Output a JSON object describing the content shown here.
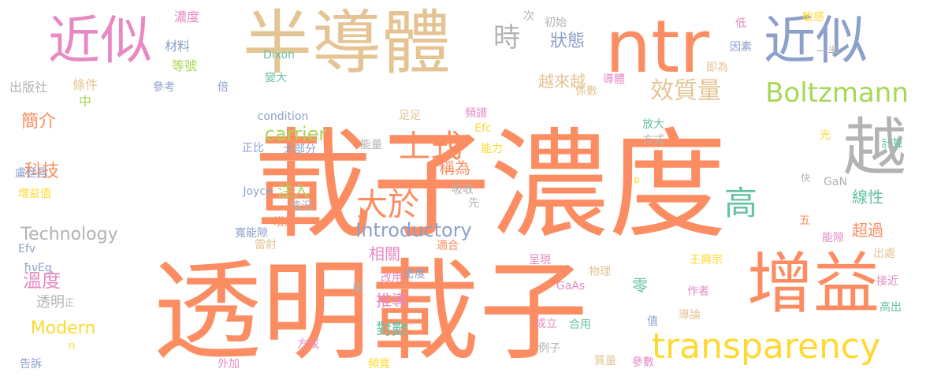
{
  "palette": {
    "orange": "#fc8d62",
    "tan": "#e5c494",
    "blue": "#8da0cb",
    "pink": "#e78ac3",
    "green": "#a6d854",
    "yellow": "#ffd92f",
    "teal": "#66c2a5",
    "gray": "#b3b3b3"
  },
  "words": [
    {
      "text": "載子濃度",
      "color": "orange",
      "v": false
    },
    {
      "text": "透明載子",
      "color": "orange",
      "v": false
    },
    {
      "text": "半導體",
      "color": "tan",
      "v": false
    },
    {
      "text": "ntr",
      "color": "orange",
      "v": false
    },
    {
      "text": "近似",
      "color": "pink",
      "v": false
    },
    {
      "text": "近似",
      "color": "blue",
      "v": false
    },
    {
      "text": "增益",
      "color": "orange",
      "v": false
    },
    {
      "text": "越",
      "color": "gray",
      "v": false
    },
    {
      "text": "transparency",
      "color": "yellow",
      "v": false
    },
    {
      "text": "Boltzmann",
      "color": "green",
      "v": false
    },
    {
      "text": "效質量",
      "color": "tan",
      "v": false
    },
    {
      "text": "時",
      "color": "gray",
      "v": false
    },
    {
      "text": "上式",
      "color": "orange",
      "v": false
    },
    {
      "text": "大於",
      "color": "orange",
      "v": false
    },
    {
      "text": "高",
      "color": "teal",
      "v": false
    },
    {
      "text": "Introductory",
      "color": "blue",
      "v": false
    },
    {
      "text": "Technology",
      "color": "gray",
      "v": false
    },
    {
      "text": "carrier",
      "color": "green",
      "v": false
    },
    {
      "text": "Modern",
      "color": "yellow",
      "v": false
    },
    {
      "text": "狀態",
      "color": "blue",
      "v": false
    },
    {
      "text": "越來越",
      "color": "tan",
      "v": false
    },
    {
      "text": "簡介",
      "color": "orange",
      "v": false
    },
    {
      "text": "科技",
      "color": "orange",
      "v": false
    },
    {
      "text": "溫度",
      "color": "pink",
      "v": false
    },
    {
      "text": "注入",
      "color": "green",
      "v": false
    },
    {
      "text": "稱為",
      "color": "orange",
      "v": false
    },
    {
      "text": "相關",
      "color": "pink",
      "v": false
    },
    {
      "text": "推導",
      "color": "pink",
      "v": false
    },
    {
      "text": "對數",
      "color": "teal",
      "v": false
    },
    {
      "text": "線性",
      "color": "teal",
      "v": false
    },
    {
      "text": "超過",
      "color": "orange",
      "v": false
    },
    {
      "text": "零",
      "color": "teal",
      "v": false
    },
    {
      "text": "透明",
      "color": "gray",
      "v": false
    },
    {
      "text": "濃度",
      "color": "pink",
      "v": false
    },
    {
      "text": "材料",
      "color": "blue",
      "v": false
    },
    {
      "text": "等號",
      "color": "green",
      "v": false
    },
    {
      "text": "Dixon",
      "color": "teal",
      "v": false
    },
    {
      "text": "變大",
      "color": "teal",
      "v": false
    },
    {
      "text": "參考",
      "color": "blue",
      "v": false
    },
    {
      "text": "出版社",
      "color": "gray",
      "v": false
    },
    {
      "text": "條件",
      "color": "tan",
      "v": false
    },
    {
      "text": "中",
      "color": "green",
      "v": false
    },
    {
      "text": "倍",
      "color": "blue",
      "v": false
    },
    {
      "text": "初始",
      "color": "gray",
      "v": false
    },
    {
      "text": "次",
      "color": "gray",
      "v": false
    },
    {
      "text": "低",
      "color": "pink",
      "v": false
    },
    {
      "text": "因素",
      "color": "blue",
      "v": false
    },
    {
      "text": "即為",
      "color": "tan",
      "v": false
    },
    {
      "text": "敏感",
      "color": "yellow",
      "v": false
    },
    {
      "text": "一半",
      "color": "gray",
      "v": false
    },
    {
      "text": "導體",
      "color": "pink",
      "v": false
    },
    {
      "text": "係數",
      "color": "tan",
      "v": false
    },
    {
      "text": "condition",
      "color": "blue",
      "v": false
    },
    {
      "text": "足足",
      "color": "tan",
      "v": false
    },
    {
      "text": "頻譜",
      "color": "pink",
      "v": false
    },
    {
      "text": "Efc",
      "color": "yellow",
      "v": false
    },
    {
      "text": "正比",
      "color": "blue",
      "v": false
    },
    {
      "text": "大部分",
      "color": "blue",
      "v": false
    },
    {
      "text": "能量",
      "color": "gray",
      "v": false
    },
    {
      "text": "能力",
      "color": "yellow",
      "v": false
    },
    {
      "text": "放大",
      "color": "teal",
      "v": false
    },
    {
      "text": "方式",
      "color": "gray",
      "v": false
    },
    {
      "text": "光",
      "color": "yellow",
      "v": false
    },
    {
      "text": "計算",
      "color": "teal",
      "v": false
    },
    {
      "text": "p",
      "color": "yellow",
      "v": false
    },
    {
      "text": "快",
      "color": "gray",
      "v": false
    },
    {
      "text": "GaN",
      "color": "gray",
      "v": false
    },
    {
      "text": "Joyce",
      "color": "blue",
      "v": false
    },
    {
      "text": "先",
      "color": "gray",
      "v": false
    },
    {
      "text": "情況",
      "color": "gray",
      "v": false
    },
    {
      "text": "寬能隙",
      "color": "blue",
      "v": false
    },
    {
      "text": "增加",
      "color": "orange",
      "v": false
    },
    {
      "text": "五",
      "color": "orange",
      "v": false
    },
    {
      "text": "能隙",
      "color": "pink",
      "v": false
    },
    {
      "text": "適合",
      "color": "orange",
      "v": false
    },
    {
      "text": "密度",
      "color": "blue",
      "v": false
    },
    {
      "text": "雷射",
      "color": "tan",
      "v": false
    },
    {
      "text": "Efv",
      "color": "blue",
      "v": false
    },
    {
      "text": "ħνEg",
      "color": "blue",
      "v": false
    },
    {
      "text": "盧廷昌",
      "color": "blue",
      "v": false
    },
    {
      "text": "增益值",
      "color": "yellow",
      "v": false
    },
    {
      "text": "呈現",
      "color": "pink",
      "v": false
    },
    {
      "text": "物理",
      "color": "tan",
      "v": false
    },
    {
      "text": "GaAs",
      "color": "pink",
      "v": false
    },
    {
      "text": "王興宗",
      "color": "yellow",
      "v": false
    },
    {
      "text": "作者",
      "color": "pink",
      "v": false
    },
    {
      "text": "出處",
      "color": "tan",
      "v": false
    },
    {
      "text": "接近",
      "color": "pink",
      "v": false
    },
    {
      "text": "高出",
      "color": "teal",
      "v": false
    },
    {
      "text": "改用",
      "color": "pink",
      "v": false
    },
    {
      "text": "南",
      "color": "gray",
      "v": false
    },
    {
      "text": "正",
      "color": "gray",
      "v": false
    },
    {
      "text": "n",
      "color": "yellow",
      "v": false
    },
    {
      "text": "告訴",
      "color": "blue",
      "v": false
    },
    {
      "text": "成立",
      "color": "pink",
      "v": false
    },
    {
      "text": "合用",
      "color": "teal",
      "v": false
    },
    {
      "text": "值",
      "color": "blue",
      "v": false
    },
    {
      "text": "導論",
      "color": "tan",
      "v": false
    },
    {
      "text": "方成",
      "color": "pink",
      "v": false
    },
    {
      "text": "例子",
      "color": "gray",
      "v": false
    },
    {
      "text": "質量",
      "color": "tan",
      "v": false
    },
    {
      "text": "參數",
      "color": "pink",
      "v": false
    },
    {
      "text": "外加",
      "color": "pink",
      "v": false
    },
    {
      "text": "頻寬",
      "color": "yellow",
      "v": false
    },
    {
      "text": "吸收",
      "color": "gray",
      "v": false
    }
  ]
}
